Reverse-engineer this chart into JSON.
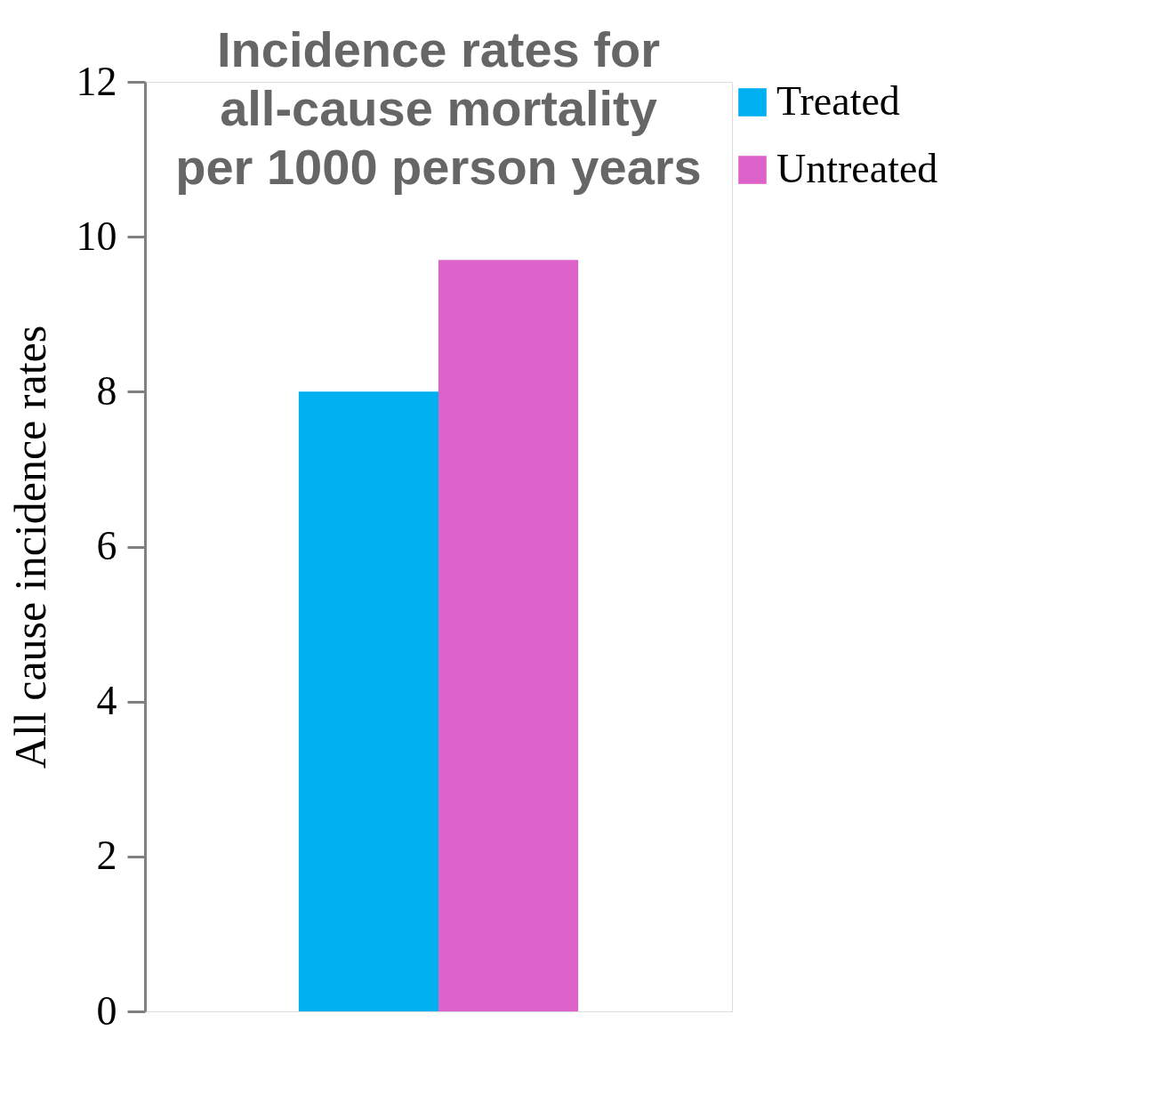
{
  "chart_data": {
    "type": "bar",
    "title": "Incidence rates for\nall-cause mortality\nper 1000 person years",
    "ylabel": "All cause incidence rates",
    "categories": [
      null
    ],
    "series": [
      {
        "name": "Treated",
        "color": "#00b0f0",
        "values": [
          8.0
        ]
      },
      {
        "name": "Untreated",
        "color": "#dd63cb",
        "values": [
          9.7
        ]
      }
    ],
    "ylim": [
      0,
      12
    ],
    "yticks": [
      0,
      2,
      4,
      6,
      8,
      10,
      12
    ],
    "grid": false,
    "legend": "right"
  }
}
